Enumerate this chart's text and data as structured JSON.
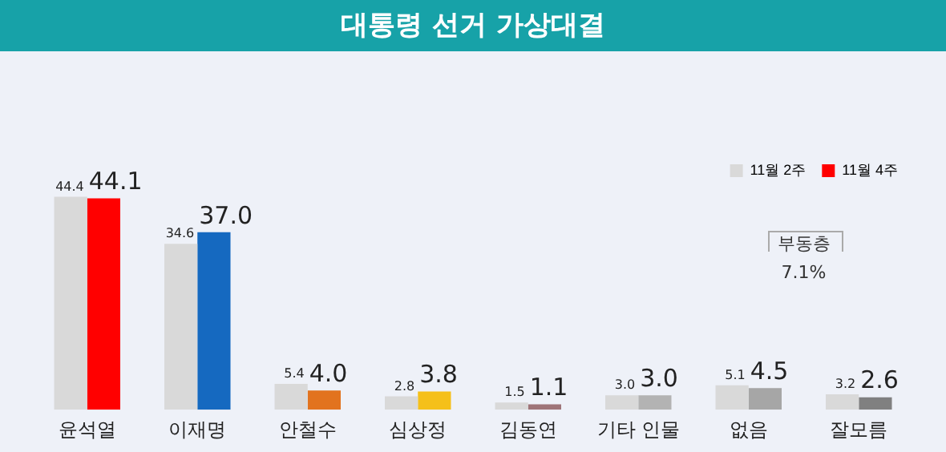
{
  "chart_data": {
    "type": "bar",
    "title": "대통령 선거 가상대결",
    "categories": [
      "윤석열",
      "이재명",
      "안철수",
      "심상정",
      "김동연",
      "기타 인물",
      "없음",
      "잘모름"
    ],
    "series": [
      {
        "name": "11월 2주",
        "color": "#d9d9d9",
        "values": [
          44.4,
          34.6,
          5.4,
          2.8,
          1.5,
          3.0,
          5.1,
          3.2
        ],
        "value_labels": [
          "44.4",
          "34.6",
          "5.4",
          "2.8",
          "1.5",
          "3.0",
          "5.1",
          "3.2"
        ]
      },
      {
        "name": "11월 4주",
        "color": "#ff0000",
        "colors": [
          "#ff0000",
          "#1569c0",
          "#e2731e",
          "#f5c01a",
          "#9e7478",
          "#b3b3b3",
          "#a6a6a6",
          "#808080"
        ],
        "values": [
          44.1,
          37.0,
          4.0,
          3.8,
          1.1,
          3.0,
          4.5,
          2.6
        ],
        "value_labels": [
          "44.1",
          "37.0",
          "4.0",
          "3.8",
          "1.1",
          "3.0",
          "4.5",
          "2.6"
        ]
      }
    ],
    "annotations": [
      "부동층",
      "7.1%"
    ],
    "legend": "top right",
    "grid": false
  }
}
